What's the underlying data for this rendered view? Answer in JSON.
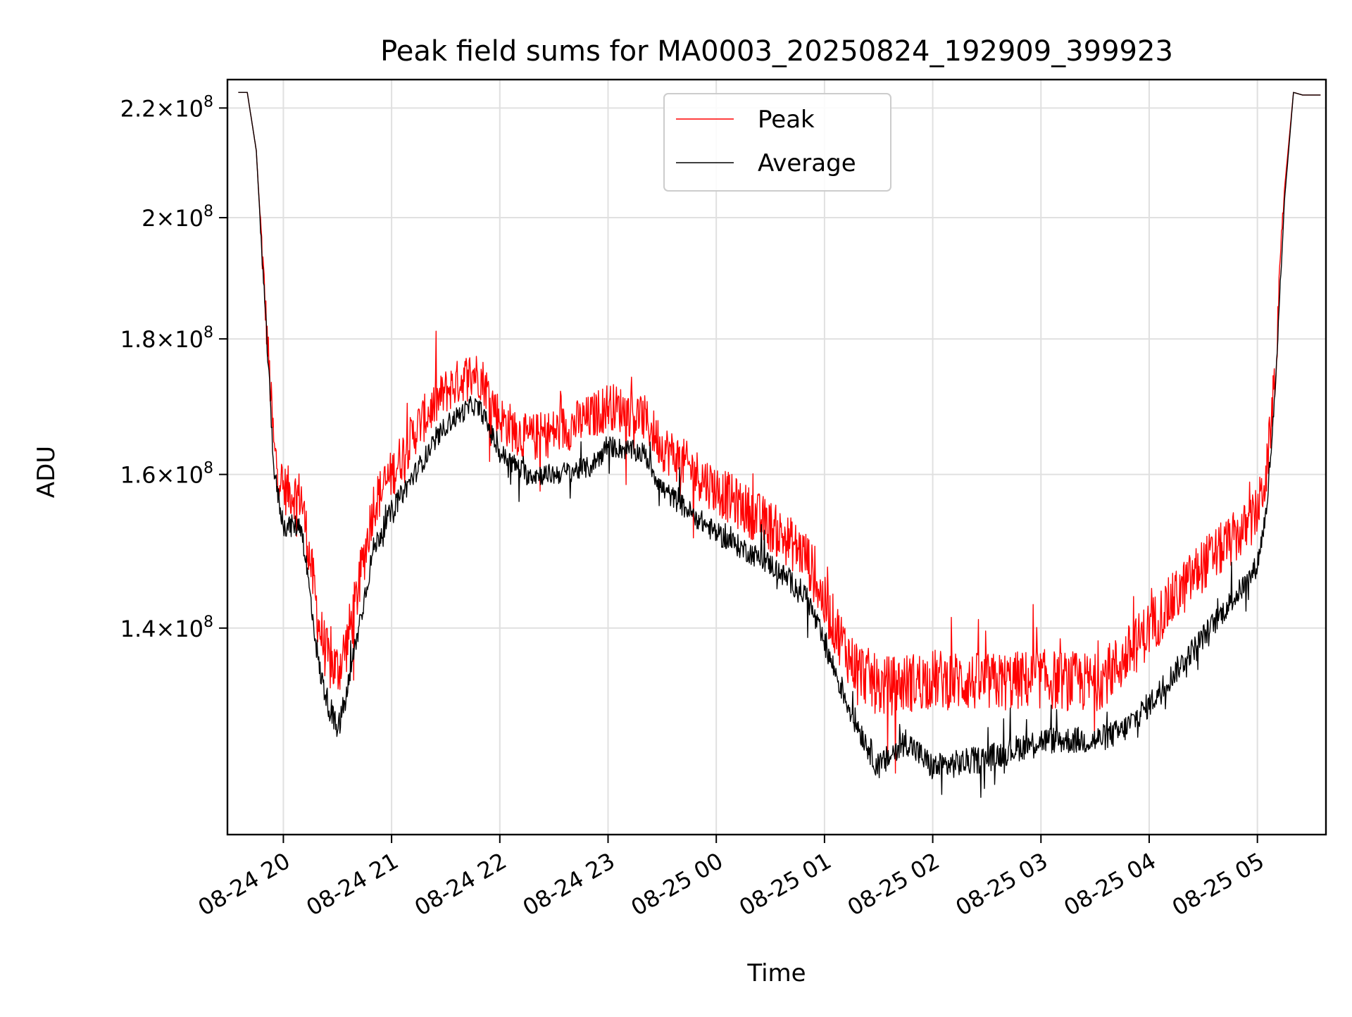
{
  "chart_data": {
    "type": "line",
    "title": "Peak field sums for MA0003_20250824_192909_399923",
    "xlabel": "Time",
    "ylabel": "ADU",
    "x_ticks": [
      "08-24 20",
      "08-24 21",
      "08-24 22",
      "08-24 23",
      "08-25 00",
      "08-25 01",
      "08-25 02",
      "08-25 03",
      "08-25 04",
      "08-25 05"
    ],
    "y_scale": "log",
    "y_ticks": [
      {
        "value": 140000000,
        "mantissa": "1.4",
        "base": "10",
        "exp": "8"
      },
      {
        "value": 160000000,
        "mantissa": "1.6",
        "base": "10",
        "exp": "8"
      },
      {
        "value": 180000000,
        "mantissa": "1.8",
        "base": "10",
        "exp": "8"
      },
      {
        "value": 200000000,
        "mantissa": "2",
        "base": "10",
        "exp": "8"
      },
      {
        "value": 220000000,
        "mantissa": "2.2",
        "base": "10",
        "exp": "8"
      }
    ],
    "xlim": [
      "2025-08-24 19:29",
      "2025-08-25 05:38"
    ],
    "ylim": [
      117000000,
      225500000
    ],
    "grid": true,
    "legend_position": "top-center",
    "series": [
      {
        "name": "Peak",
        "color": "#ff0000",
        "noise": 3500000,
        "x": [
          "2025-08-24 19:35",
          "2025-08-24 19:40",
          "2025-08-24 19:45",
          "2025-08-24 19:50",
          "2025-08-24 19:55",
          "2025-08-24 20:00",
          "2025-08-24 20:10",
          "2025-08-24 20:20",
          "2025-08-24 20:25",
          "2025-08-24 20:30",
          "2025-08-24 20:35",
          "2025-08-24 20:40",
          "2025-08-24 20:50",
          "2025-08-24 21:00",
          "2025-08-24 21:15",
          "2025-08-24 21:30",
          "2025-08-24 21:45",
          "2025-08-24 21:50",
          "2025-08-24 22:00",
          "2025-08-24 22:15",
          "2025-08-24 22:30",
          "2025-08-24 22:50",
          "2025-08-24 23:00",
          "2025-08-24 23:20",
          "2025-08-24 23:30",
          "2025-08-25 00:00",
          "2025-08-25 00:30",
          "2025-08-25 00:50",
          "2025-08-25 01:00",
          "2025-08-25 01:15",
          "2025-08-25 01:30",
          "2025-08-25 01:45",
          "2025-08-25 02:00",
          "2025-08-25 02:30",
          "2025-08-25 03:00",
          "2025-08-25 03:30",
          "2025-08-25 03:45",
          "2025-08-25 04:00",
          "2025-08-25 04:30",
          "2025-08-25 04:55",
          "2025-08-25 05:00",
          "2025-08-25 05:05",
          "2025-08-25 05:10",
          "2025-08-25 05:15",
          "2025-08-25 05:20",
          "2025-08-25 05:25",
          "2025-08-25 05:35"
        ],
        "values": [
          223000000,
          223000000,
          212000000,
          185000000,
          163000000,
          158000000,
          157000000,
          140000000,
          136000000,
          135000000,
          138000000,
          143000000,
          156000000,
          160000000,
          167000000,
          172000000,
          175000000,
          174000000,
          168000000,
          165000000,
          166000000,
          168000000,
          170000000,
          168000000,
          164000000,
          158000000,
          153000000,
          149000000,
          143000000,
          136000000,
          133000000,
          133500000,
          134000000,
          133500000,
          134000000,
          133500000,
          136000000,
          140000000,
          148000000,
          153000000,
          155000000,
          160000000,
          175000000,
          205000000,
          223000000,
          222500000,
          222500000
        ]
      },
      {
        "name": "Average",
        "color": "#000000",
        "noise": 1500000,
        "x": [
          "2025-08-24 19:35",
          "2025-08-24 19:40",
          "2025-08-24 19:45",
          "2025-08-24 19:50",
          "2025-08-24 19:55",
          "2025-08-24 20:00",
          "2025-08-24 20:10",
          "2025-08-24 20:20",
          "2025-08-24 20:25",
          "2025-08-24 20:30",
          "2025-08-24 20:35",
          "2025-08-24 20:40",
          "2025-08-24 20:50",
          "2025-08-24 21:00",
          "2025-08-24 21:15",
          "2025-08-24 21:30",
          "2025-08-24 21:45",
          "2025-08-24 21:50",
          "2025-08-24 22:00",
          "2025-08-24 22:15",
          "2025-08-24 22:30",
          "2025-08-24 22:50",
          "2025-08-24 23:00",
          "2025-08-24 23:20",
          "2025-08-24 23:30",
          "2025-08-25 00:00",
          "2025-08-25 00:30",
          "2025-08-25 00:50",
          "2025-08-25 01:00",
          "2025-08-25 01:15",
          "2025-08-25 01:30",
          "2025-08-25 01:45",
          "2025-08-25 02:00",
          "2025-08-25 02:30",
          "2025-08-25 03:00",
          "2025-08-25 03:30",
          "2025-08-25 03:45",
          "2025-08-25 04:00",
          "2025-08-25 04:30",
          "2025-08-25 04:55",
          "2025-08-25 05:00",
          "2025-08-25 05:05",
          "2025-08-25 05:10",
          "2025-08-25 05:15",
          "2025-08-25 05:20",
          "2025-08-25 05:25",
          "2025-08-25 05:35"
        ],
        "values": [
          223000000,
          223000000,
          212000000,
          184000000,
          160000000,
          153000000,
          153000000,
          135000000,
          131000000,
          128000000,
          132000000,
          138000000,
          150000000,
          155000000,
          161000000,
          167000000,
          170000000,
          169000000,
          163000000,
          160000000,
          160000000,
          161000000,
          164000000,
          163000000,
          158000000,
          152000000,
          148000000,
          144000000,
          138000000,
          130000000,
          124000000,
          127000000,
          124000000,
          125000000,
          127000000,
          127000000,
          128000000,
          131000000,
          139000000,
          146000000,
          148000000,
          155000000,
          172000000,
          203000000,
          223000000,
          222500000,
          222500000
        ]
      }
    ]
  }
}
